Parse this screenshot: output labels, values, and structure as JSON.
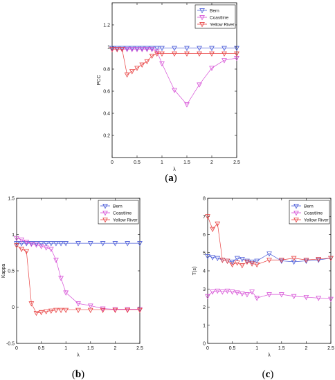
{
  "chart_data": [
    {
      "id": "a",
      "type": "line",
      "panel_label": "a",
      "ylabel": "PCC",
      "xlabel": "λ",
      "xlim": [
        0,
        2.5
      ],
      "ylim": [
        0.0,
        1.4
      ],
      "xticks": [
        0,
        0.5,
        1,
        1.5,
        2,
        2.5
      ],
      "xtick_labels": [
        "0",
        "0.5",
        "1",
        "1.5",
        "2",
        "2.5"
      ],
      "yticks": [
        0.2,
        0.4,
        0.6,
        0.8,
        1,
        1.2
      ],
      "ytick_labels": [
        "0.2",
        "0.4",
        "0.6",
        "0.8",
        "1",
        "1.2"
      ],
      "legend_position": "top-right",
      "series": [
        {
          "name": "Bern",
          "color": "#4a5bd8",
          "x": [
            0,
            0.1,
            0.2,
            0.3,
            0.4,
            0.5,
            0.6,
            0.7,
            0.8,
            0.9,
            1,
            1.25,
            1.5,
            1.75,
            2,
            2.25,
            2.5
          ],
          "y": [
            0.99,
            0.99,
            0.99,
            0.99,
            0.99,
            0.99,
            0.99,
            0.99,
            0.99,
            0.99,
            0.99,
            0.99,
            0.99,
            0.99,
            0.99,
            0.99,
            0.99
          ]
        },
        {
          "name": "Coastline",
          "color": "#d64fd6",
          "x": [
            0,
            0.1,
            0.2,
            0.3,
            0.4,
            0.5,
            0.6,
            0.7,
            0.8,
            0.9,
            1,
            1.25,
            1.5,
            1.75,
            2,
            2.25,
            2.5
          ],
          "y": [
            0.98,
            0.98,
            0.98,
            0.98,
            0.98,
            0.98,
            0.98,
            0.98,
            0.98,
            0.96,
            0.85,
            0.61,
            0.48,
            0.66,
            0.81,
            0.88,
            0.9
          ]
        },
        {
          "name": "Yellow River",
          "color": "#e84040",
          "x": [
            0,
            0.1,
            0.2,
            0.3,
            0.4,
            0.5,
            0.6,
            0.7,
            0.8,
            0.9,
            1,
            1.25,
            1.5,
            1.75,
            2,
            2.25,
            2.5
          ],
          "y": [
            0.98,
            0.98,
            0.98,
            0.75,
            0.78,
            0.81,
            0.84,
            0.87,
            0.92,
            0.94,
            0.94,
            0.94,
            0.94,
            0.94,
            0.94,
            0.94,
            0.94
          ]
        }
      ]
    },
    {
      "id": "b",
      "type": "line",
      "panel_label": "b",
      "ylabel": "Kappa",
      "xlabel": "λ",
      "xlim": [
        0,
        2.5
      ],
      "ylim": [
        -0.5,
        1.5
      ],
      "xticks": [
        0,
        0.5,
        1,
        1.5,
        2,
        2.5
      ],
      "xtick_labels": [
        "0",
        "0.5",
        "1",
        "1.5",
        "2",
        "2.5"
      ],
      "yticks": [
        -0.5,
        0,
        0.5,
        1,
        1.5
      ],
      "ytick_labels": [
        "-0.5",
        "0",
        "0.5",
        "1",
        "1.5"
      ],
      "legend_position": "top-right",
      "series": [
        {
          "name": "Bern",
          "color": "#4a5bd8",
          "x": [
            0,
            0.1,
            0.2,
            0.3,
            0.4,
            0.5,
            0.6,
            0.7,
            0.8,
            0.9,
            1,
            1.25,
            1.5,
            1.75,
            2,
            2.25,
            2.5
          ],
          "y": [
            0.88,
            0.88,
            0.88,
            0.88,
            0.88,
            0.88,
            0.88,
            0.88,
            0.88,
            0.88,
            0.88,
            0.88,
            0.88,
            0.88,
            0.88,
            0.88,
            0.88
          ]
        },
        {
          "name": "Coastline",
          "color": "#d64fd6",
          "x": [
            0,
            0.1,
            0.2,
            0.3,
            0.4,
            0.5,
            0.6,
            0.7,
            0.8,
            0.9,
            1,
            1.25,
            1.5,
            1.75,
            2,
            2.25,
            2.5
          ],
          "y": [
            0.95,
            0.93,
            0.9,
            0.87,
            0.86,
            0.84,
            0.82,
            0.8,
            0.65,
            0.4,
            0.2,
            0.05,
            0.02,
            -0.02,
            -0.03,
            -0.03,
            -0.03
          ]
        },
        {
          "name": "Yellow River",
          "color": "#e84040",
          "x": [
            0,
            0.1,
            0.2,
            0.3,
            0.4,
            0.5,
            0.6,
            0.7,
            0.8,
            0.9,
            1,
            1.25,
            1.5,
            1.75,
            2,
            2.25,
            2.5
          ],
          "y": [
            0.85,
            0.8,
            0.77,
            0.05,
            -0.08,
            -0.07,
            -0.06,
            -0.05,
            -0.04,
            -0.04,
            -0.04,
            -0.04,
            -0.04,
            -0.04,
            -0.04,
            -0.04,
            -0.04
          ]
        }
      ]
    },
    {
      "id": "c",
      "type": "line",
      "panel_label": "c",
      "ylabel": "T(s)",
      "xlabel": "λ",
      "xlim": [
        0,
        2.5
      ],
      "ylim": [
        0,
        8
      ],
      "xticks": [
        0,
        0.5,
        1,
        1.5,
        2,
        2.5
      ],
      "xtick_labels": [
        "0",
        "0.5",
        "1",
        "1.5",
        "2",
        "2.5"
      ],
      "yticks": [
        0,
        1,
        2,
        3,
        4,
        5,
        6,
        7,
        8
      ],
      "ytick_labels": [
        "0",
        "1",
        "2",
        "3",
        "4",
        "5",
        "6",
        "7",
        "8"
      ],
      "legend_position": "top-right",
      "series": [
        {
          "name": "Bern",
          "color": "#4a5bd8",
          "x": [
            0,
            0.1,
            0.2,
            0.3,
            0.4,
            0.5,
            0.6,
            0.7,
            0.8,
            0.9,
            1,
            1.25,
            1.5,
            1.75,
            2,
            2.25,
            2.5
          ],
          "y": [
            4.8,
            4.75,
            4.7,
            4.6,
            4.55,
            4.5,
            4.7,
            4.65,
            4.55,
            4.5,
            4.55,
            4.95,
            4.55,
            4.5,
            4.55,
            4.6,
            4.7
          ]
        },
        {
          "name": "Coastline",
          "color": "#d64fd6",
          "x": [
            0,
            0.1,
            0.2,
            0.3,
            0.4,
            0.5,
            0.6,
            0.7,
            0.8,
            0.9,
            1,
            1.25,
            1.5,
            1.75,
            2,
            2.25,
            2.5
          ],
          "y": [
            2.6,
            2.85,
            2.9,
            2.85,
            2.9,
            2.85,
            2.8,
            2.75,
            2.7,
            2.85,
            2.5,
            2.7,
            2.7,
            2.6,
            2.55,
            2.5,
            2.45
          ]
        },
        {
          "name": "Yellow River",
          "color": "#e84040",
          "x": [
            0,
            0.1,
            0.2,
            0.3,
            0.4,
            0.5,
            0.6,
            0.7,
            0.8,
            0.9,
            1,
            1.25,
            1.5,
            1.75,
            2,
            2.25,
            2.5
          ],
          "y": [
            7.0,
            6.3,
            6.6,
            4.6,
            4.55,
            4.35,
            4.45,
            4.3,
            4.5,
            4.4,
            4.35,
            4.6,
            4.6,
            4.7,
            4.6,
            4.65,
            4.7
          ]
        }
      ]
    }
  ]
}
